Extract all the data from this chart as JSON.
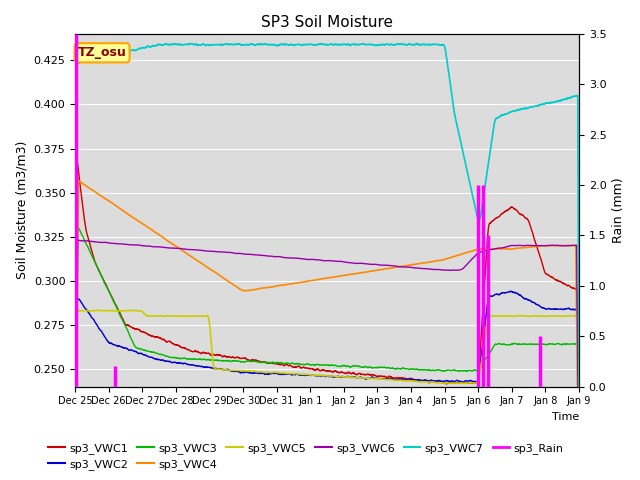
{
  "title": "SP3 Soil Moisture",
  "xlabel": "Time",
  "ylabel_left": "Soil Moisture (m3/m3)",
  "ylabel_right": "Rain (mm)",
  "ylim_left": [
    0.24,
    0.44
  ],
  "ylim_right": [
    0.0,
    3.5
  ],
  "annotation_text": "TZ_osu",
  "annotation_color": "#8B0000",
  "annotation_bg": "#FFFF99",
  "annotation_border": "#FFA500",
  "bg_color": "#DCDCDC",
  "grid_color": "#FFFFFF",
  "colors": {
    "VWC1": "#CC0000",
    "VWC2": "#0000CC",
    "VWC3": "#00BB00",
    "VWC4": "#FF8800",
    "VWC5": "#CCCC00",
    "VWC6": "#9900AA",
    "VWC7": "#00CCCC",
    "Rain": "#FF00FF"
  },
  "xtick_labels": [
    "Dec 25",
    "Dec 26",
    "Dec 27",
    "Dec 28",
    "Dec 29",
    "Dec 30",
    "Dec 31",
    "Jan 1",
    "Jan 2",
    "Jan 3",
    "Jan 4",
    "Jan 5",
    "Jan 6",
    "Jan 7",
    "Jan 8",
    "Jan 9"
  ],
  "figsize": [
    6.4,
    4.8
  ],
  "dpi": 100
}
